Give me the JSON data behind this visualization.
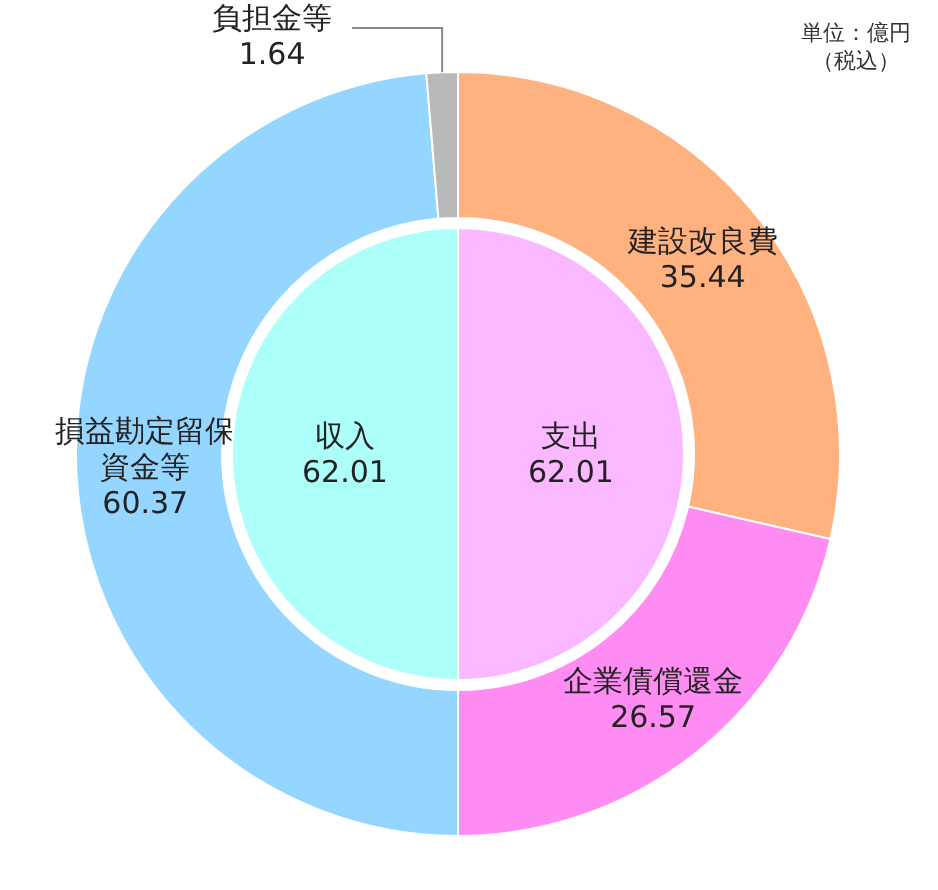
{
  "chart_data": [
    {
      "type": "donut",
      "categories": [
        "建設改良費",
        "企業債償還金",
        "損益勘定留保資金等",
        "負担金等"
      ],
      "values": [
        35.44,
        26.57,
        60.37,
        1.64
      ],
      "colors": [
        "#ffb27f",
        "#ff8cf2",
        "#94d6ff",
        "#b9b9b9"
      ],
      "data_labels": true,
      "annotations": [
        "単位：億円",
        "（税込）"
      ]
    },
    {
      "type": "pie",
      "categories": [
        "支出",
        "収入"
      ],
      "values": [
        62.01,
        62.01
      ],
      "colors": [
        "#f9b8ff",
        "#adfffa"
      ],
      "data_labels": true
    }
  ]
}
